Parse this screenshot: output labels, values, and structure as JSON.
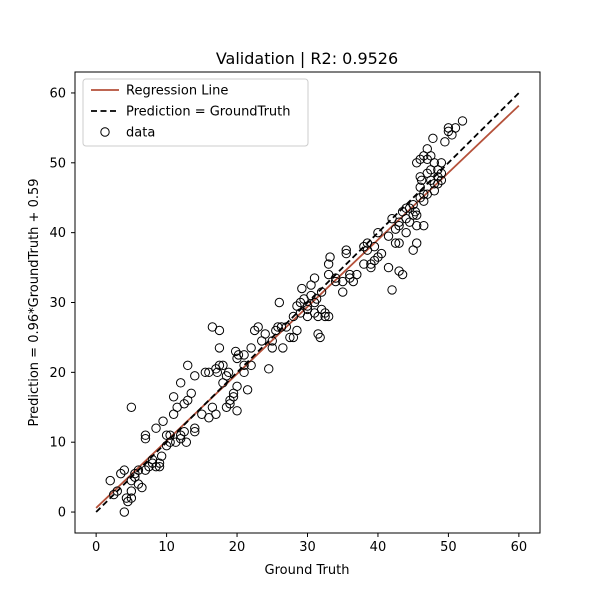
{
  "chart_data": {
    "type": "scatter",
    "title": "Validation | R2: 0.9526",
    "xlabel": "Ground Truth",
    "ylabel": "Prediction = 0.96*GroundTruth + 0.59",
    "xlim": [
      -3,
      63
    ],
    "ylim": [
      -3,
      63
    ],
    "xticks": [
      0,
      10,
      20,
      30,
      40,
      50,
      60
    ],
    "yticks": [
      0,
      10,
      20,
      30,
      40,
      50,
      60
    ],
    "grid": false,
    "legend_position": "top-left",
    "legend": [
      {
        "label": "Regression Line",
        "style": "solid",
        "color": "#b5513a"
      },
      {
        "label": "Prediction = GroundTruth",
        "style": "dashed",
        "color": "#000000"
      },
      {
        "label": "data",
        "style": "marker-circle-open",
        "color": "#000000"
      }
    ],
    "regression_line": {
      "slope": 0.96,
      "intercept": 0.59,
      "x_range": [
        0,
        60
      ],
      "color": "#b5513a"
    },
    "identity_line": {
      "x_range": [
        0,
        60
      ],
      "color": "#000000"
    },
    "series": [
      {
        "name": "data",
        "points": [
          [
            2,
            4.5
          ],
          [
            2.5,
            2.5
          ],
          [
            3,
            3
          ],
          [
            3.5,
            5.5
          ],
          [
            4,
            6
          ],
          [
            4,
            0
          ],
          [
            4.3,
            2
          ],
          [
            4.5,
            1.5
          ],
          [
            5,
            3
          ],
          [
            5,
            2
          ],
          [
            5.5,
            5.5
          ],
          [
            5,
            4.5
          ],
          [
            5.5,
            5
          ],
          [
            6,
            6
          ],
          [
            6,
            4
          ],
          [
            6.5,
            3.5
          ],
          [
            5,
            15
          ],
          [
            7,
            6
          ],
          [
            7,
            10.5
          ],
          [
            7,
            11
          ],
          [
            7.5,
            6.5
          ],
          [
            8,
            7.5
          ],
          [
            8,
            7
          ],
          [
            8.5,
            6.5
          ],
          [
            9,
            6.5
          ],
          [
            8.5,
            12
          ],
          [
            9,
            7
          ],
          [
            9.3,
            8
          ],
          [
            9.5,
            13
          ],
          [
            10,
            11
          ],
          [
            10,
            9.5
          ],
          [
            10.5,
            10
          ],
          [
            10.5,
            11
          ],
          [
            11,
            14
          ],
          [
            11,
            16.5
          ],
          [
            11.3,
            10
          ],
          [
            11.5,
            15
          ],
          [
            12,
            18.5
          ],
          [
            12,
            11
          ],
          [
            12,
            10.5
          ],
          [
            12.5,
            11.5
          ],
          [
            12.5,
            15.5
          ],
          [
            13,
            16
          ],
          [
            12.8,
            10
          ],
          [
            13,
            21
          ],
          [
            13.5,
            17
          ],
          [
            14,
            12
          ],
          [
            14,
            11.5
          ],
          [
            14,
            19.5
          ],
          [
            15,
            14
          ],
          [
            15.5,
            20
          ],
          [
            16,
            20
          ],
          [
            16,
            13.5
          ],
          [
            16.5,
            26.5
          ],
          [
            16.5,
            15
          ],
          [
            17,
            14
          ],
          [
            17,
            20.5
          ],
          [
            17.2,
            20
          ],
          [
            17.5,
            21
          ],
          [
            17.5,
            23.5
          ],
          [
            17.5,
            26
          ],
          [
            18,
            18.5
          ],
          [
            18,
            21
          ],
          [
            18.5,
            19.5
          ],
          [
            18.5,
            15
          ],
          [
            18.8,
            20
          ],
          [
            19,
            16
          ],
          [
            19,
            15.5
          ],
          [
            19.5,
            16.5
          ],
          [
            19.5,
            17
          ],
          [
            20,
            14.5
          ],
          [
            19.8,
            23
          ],
          [
            20,
            18
          ],
          [
            20,
            22
          ],
          [
            20.2,
            22.5
          ],
          [
            21,
            22.5
          ],
          [
            21,
            21
          ],
          [
            21,
            20
          ],
          [
            21.5,
            17.5
          ],
          [
            22,
            23.5
          ],
          [
            22,
            21
          ],
          [
            22.5,
            26
          ],
          [
            23,
            26.5
          ],
          [
            23.5,
            24.5
          ],
          [
            24,
            25.5
          ],
          [
            24.5,
            20.5
          ],
          [
            25,
            23.5
          ],
          [
            25,
            24.5
          ],
          [
            25.5,
            26
          ],
          [
            25.8,
            26.5
          ],
          [
            26,
            30
          ],
          [
            26.3,
            26.5
          ],
          [
            26.5,
            23.5
          ],
          [
            27,
            26.5
          ],
          [
            27.5,
            25
          ],
          [
            28,
            28
          ],
          [
            28,
            25
          ],
          [
            28.5,
            26
          ],
          [
            28.5,
            29.5
          ],
          [
            29,
            30
          ],
          [
            29,
            28.5
          ],
          [
            29.2,
            32
          ],
          [
            29.5,
            30.5
          ],
          [
            30,
            29
          ],
          [
            30,
            28
          ],
          [
            30,
            29.5
          ],
          [
            30.5,
            32.5
          ],
          [
            30.5,
            31
          ],
          [
            31,
            28.5
          ],
          [
            31,
            30
          ],
          [
            31,
            33.5
          ],
          [
            31.3,
            30.5
          ],
          [
            31.5,
            25.5
          ],
          [
            31.5,
            28
          ],
          [
            31.8,
            25
          ],
          [
            32,
            29
          ],
          [
            32,
            31.5
          ],
          [
            32.5,
            28.5
          ],
          [
            32.5,
            28
          ],
          [
            33,
            35.5
          ],
          [
            33,
            34
          ],
          [
            33,
            28
          ],
          [
            33.2,
            36.5
          ],
          [
            34,
            33
          ],
          [
            34,
            33.5
          ],
          [
            35,
            31.5
          ],
          [
            35,
            33
          ],
          [
            35.5,
            37.5
          ],
          [
            35.5,
            37
          ],
          [
            36,
            34
          ],
          [
            36,
            33.5
          ],
          [
            36.5,
            33
          ],
          [
            37,
            34
          ],
          [
            38,
            38
          ],
          [
            38,
            35.5
          ],
          [
            38.5,
            38.5
          ],
          [
            38.5,
            37.5
          ],
          [
            39,
            35
          ],
          [
            39,
            35.5
          ],
          [
            39.5,
            38
          ],
          [
            39.5,
            36
          ],
          [
            40,
            40
          ],
          [
            40,
            36.5
          ],
          [
            40.5,
            37
          ],
          [
            41.5,
            35
          ],
          [
            41.5,
            39.5
          ],
          [
            42,
            42
          ],
          [
            42,
            31.8
          ],
          [
            42.5,
            38.5
          ],
          [
            42.5,
            40.5
          ],
          [
            43,
            38.5
          ],
          [
            43,
            41.5
          ],
          [
            43,
            41
          ],
          [
            43,
            34.5
          ],
          [
            43.5,
            34
          ],
          [
            43.5,
            43
          ],
          [
            44,
            43.5
          ],
          [
            44,
            40
          ],
          [
            44,
            42
          ],
          [
            44.5,
            41.5
          ],
          [
            44.5,
            43.5
          ],
          [
            45,
            42.5
          ],
          [
            45,
            44
          ],
          [
            45,
            37.5
          ],
          [
            45.3,
            43
          ],
          [
            45.5,
            41
          ],
          [
            45.5,
            42.5
          ],
          [
            45.5,
            38.5
          ],
          [
            45.5,
            50
          ],
          [
            46,
            50.5
          ],
          [
            46,
            46.5
          ],
          [
            46,
            45
          ],
          [
            46,
            48
          ],
          [
            46.2,
            47.5
          ],
          [
            46.5,
            51
          ],
          [
            46.5,
            45.5
          ],
          [
            46.5,
            44.5
          ],
          [
            46.5,
            41
          ],
          [
            47,
            50.5
          ],
          [
            47,
            52
          ],
          [
            47,
            48.5
          ],
          [
            47,
            45.5
          ],
          [
            47.5,
            49
          ],
          [
            47.5,
            47.5
          ],
          [
            47.5,
            51
          ],
          [
            47.8,
            53.5
          ],
          [
            48,
            46
          ],
          [
            48,
            50
          ],
          [
            48,
            47
          ],
          [
            48.5,
            48
          ],
          [
            48.5,
            47
          ],
          [
            48.5,
            49
          ],
          [
            49,
            47.5
          ],
          [
            49,
            50
          ],
          [
            49,
            48.5
          ],
          [
            49.5,
            53
          ],
          [
            50,
            55
          ],
          [
            50,
            54.5
          ],
          [
            50.5,
            54
          ],
          [
            51,
            55
          ],
          [
            52,
            56
          ]
        ]
      }
    ]
  }
}
